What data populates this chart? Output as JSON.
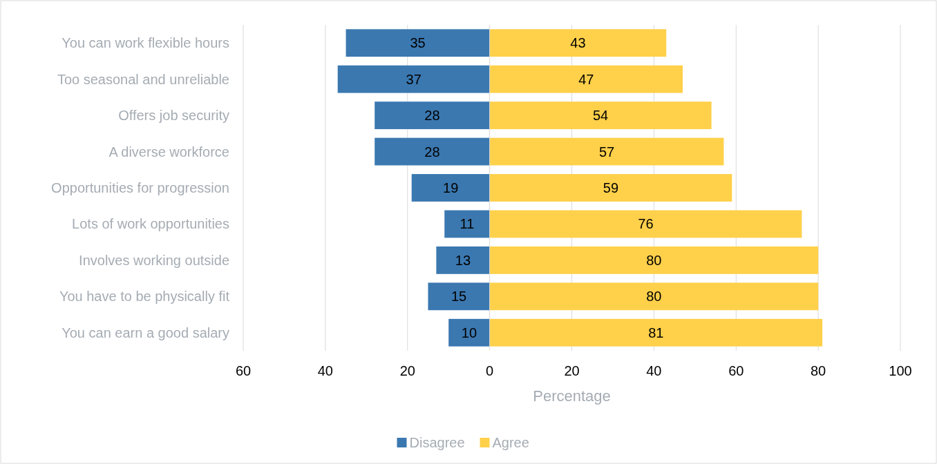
{
  "chart_data": {
    "type": "bar",
    "orientation": "horizontal",
    "stacked": true,
    "categories": [
      "You can work flexible hours",
      "Too seasonal and unreliable",
      "Offers job security",
      "A diverse workforce",
      "Opportunities for progression",
      "Lots of work opportunities",
      "Involves working outside",
      "You have to be physically fit",
      "You can earn a good salary"
    ],
    "series": [
      {
        "name": "Disagree",
        "color": "#3b78b0",
        "base": [
          -35,
          -37,
          -28,
          -28,
          -19,
          -11,
          -13,
          -15,
          -10
        ],
        "values": [
          35,
          37,
          28,
          28,
          19,
          11,
          13,
          15,
          10
        ],
        "value_labels": [
          "35",
          "37",
          "28",
          "28",
          "19",
          "11",
          "13",
          "15",
          "10"
        ]
      },
      {
        "name": "Agree",
        "color": "#ffd04a",
        "values": [
          43,
          47,
          54,
          57,
          59,
          76,
          80,
          80,
          81
        ],
        "value_labels": [
          "43",
          "47",
          "54",
          "57",
          "59",
          "76",
          "80",
          "80",
          "81"
        ]
      }
    ],
    "xlabel": "Percentage",
    "xlim": [
      -60,
      100
    ],
    "xticks": [
      {
        "value": -60,
        "label": "60"
      },
      {
        "value": -40,
        "label": "40"
      },
      {
        "value": -20,
        "label": "20"
      },
      0,
      20,
      40,
      60,
      80,
      100
    ],
    "grid": "x",
    "legend": "bottom"
  }
}
